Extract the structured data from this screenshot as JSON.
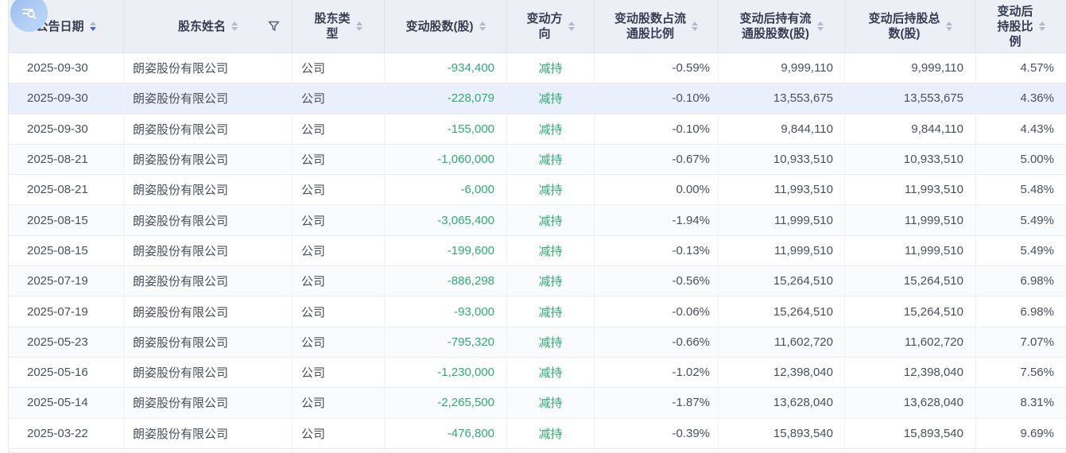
{
  "colors": {
    "positive_green": "#2faa73",
    "header_bg": "#edeff7",
    "highlight_row_bg": "#e9effb",
    "sort_active_blue": "#3e6bd5"
  },
  "fab": {
    "icon": "search-list-icon"
  },
  "table": {
    "columns": [
      {
        "key": "announce_date",
        "label": "公告日期",
        "align": "left",
        "sortable": true,
        "sort_direction": "desc",
        "filter": false,
        "green": false
      },
      {
        "key": "shareholder_name",
        "label": "股东姓名",
        "align": "left",
        "sortable": true,
        "sort_direction": null,
        "filter": true,
        "green": false
      },
      {
        "key": "shareholder_type",
        "label": "股东类\n型",
        "align": "left",
        "sortable": true,
        "sort_direction": null,
        "filter": false,
        "green": false
      },
      {
        "key": "change_shares",
        "label": "变动股数(股)",
        "align": "right",
        "sortable": true,
        "sort_direction": null,
        "filter": false,
        "green": true
      },
      {
        "key": "change_direction",
        "label": "变动方\n向",
        "align": "center",
        "sortable": true,
        "sort_direction": null,
        "filter": false,
        "green": true
      },
      {
        "key": "change_pct_of_float",
        "label": "变动股数占流\n通股比例",
        "align": "right",
        "sortable": true,
        "sort_direction": null,
        "filter": false,
        "green": false
      },
      {
        "key": "float_shares_after",
        "label": "变动后持有流\n通股股数(股)",
        "align": "right",
        "sortable": true,
        "sort_direction": null,
        "filter": false,
        "green": false
      },
      {
        "key": "total_shares_after",
        "label": "变动后持股总\n数(股)",
        "align": "right",
        "sortable": true,
        "sort_direction": null,
        "filter": false,
        "green": false
      },
      {
        "key": "holding_pct_after",
        "label": "变动后\n持股比\n例",
        "align": "right",
        "sortable": true,
        "sort_direction": null,
        "filter": false,
        "green": false
      }
    ],
    "highlighted_row_index": 1,
    "rows": [
      {
        "announce_date": "2025-09-30",
        "shareholder_name": "朗姿股份有限公司",
        "shareholder_type": "公司",
        "change_shares": "-934,400",
        "change_direction": "减持",
        "change_pct_of_float": "-0.59%",
        "float_shares_after": "9,999,110",
        "total_shares_after": "9,999,110",
        "holding_pct_after": "4.57%"
      },
      {
        "announce_date": "2025-09-30",
        "shareholder_name": "朗姿股份有限公司",
        "shareholder_type": "公司",
        "change_shares": "-228,079",
        "change_direction": "减持",
        "change_pct_of_float": "-0.10%",
        "float_shares_after": "13,553,675",
        "total_shares_after": "13,553,675",
        "holding_pct_after": "4.36%"
      },
      {
        "announce_date": "2025-09-30",
        "shareholder_name": "朗姿股份有限公司",
        "shareholder_type": "公司",
        "change_shares": "-155,000",
        "change_direction": "减持",
        "change_pct_of_float": "-0.10%",
        "float_shares_after": "9,844,110",
        "total_shares_after": "9,844,110",
        "holding_pct_after": "4.43%"
      },
      {
        "announce_date": "2025-08-21",
        "shareholder_name": "朗姿股份有限公司",
        "shareholder_type": "公司",
        "change_shares": "-1,060,000",
        "change_direction": "减持",
        "change_pct_of_float": "-0.67%",
        "float_shares_after": "10,933,510",
        "total_shares_after": "10,933,510",
        "holding_pct_after": "5.00%"
      },
      {
        "announce_date": "2025-08-21",
        "shareholder_name": "朗姿股份有限公司",
        "shareholder_type": "公司",
        "change_shares": "-6,000",
        "change_direction": "减持",
        "change_pct_of_float": "0.00%",
        "float_shares_after": "11,993,510",
        "total_shares_after": "11,993,510",
        "holding_pct_after": "5.48%"
      },
      {
        "announce_date": "2025-08-15",
        "shareholder_name": "朗姿股份有限公司",
        "shareholder_type": "公司",
        "change_shares": "-3,065,400",
        "change_direction": "减持",
        "change_pct_of_float": "-1.94%",
        "float_shares_after": "11,999,510",
        "total_shares_after": "11,999,510",
        "holding_pct_after": "5.49%"
      },
      {
        "announce_date": "2025-08-15",
        "shareholder_name": "朗姿股份有限公司",
        "shareholder_type": "公司",
        "change_shares": "-199,600",
        "change_direction": "减持",
        "change_pct_of_float": "-0.13%",
        "float_shares_after": "11,999,510",
        "total_shares_after": "11,999,510",
        "holding_pct_after": "5.49%"
      },
      {
        "announce_date": "2025-07-19",
        "shareholder_name": "朗姿股份有限公司",
        "shareholder_type": "公司",
        "change_shares": "-886,298",
        "change_direction": "减持",
        "change_pct_of_float": "-0.56%",
        "float_shares_after": "15,264,510",
        "total_shares_after": "15,264,510",
        "holding_pct_after": "6.98%"
      },
      {
        "announce_date": "2025-07-19",
        "shareholder_name": "朗姿股份有限公司",
        "shareholder_type": "公司",
        "change_shares": "-93,000",
        "change_direction": "减持",
        "change_pct_of_float": "-0.06%",
        "float_shares_after": "15,264,510",
        "total_shares_after": "15,264,510",
        "holding_pct_after": "6.98%"
      },
      {
        "announce_date": "2025-05-23",
        "shareholder_name": "朗姿股份有限公司",
        "shareholder_type": "公司",
        "change_shares": "-795,320",
        "change_direction": "减持",
        "change_pct_of_float": "-0.66%",
        "float_shares_after": "11,602,720",
        "total_shares_after": "11,602,720",
        "holding_pct_after": "7.07%"
      },
      {
        "announce_date": "2025-05-16",
        "shareholder_name": "朗姿股份有限公司",
        "shareholder_type": "公司",
        "change_shares": "-1,230,000",
        "change_direction": "减持",
        "change_pct_of_float": "-1.02%",
        "float_shares_after": "12,398,040",
        "total_shares_after": "12,398,040",
        "holding_pct_after": "7.56%"
      },
      {
        "announce_date": "2025-05-14",
        "shareholder_name": "朗姿股份有限公司",
        "shareholder_type": "公司",
        "change_shares": "-2,265,500",
        "change_direction": "减持",
        "change_pct_of_float": "-1.87%",
        "float_shares_after": "13,628,040",
        "total_shares_after": "13,628,040",
        "holding_pct_after": "8.31%"
      },
      {
        "announce_date": "2025-03-22",
        "shareholder_name": "朗姿股份有限公司",
        "shareholder_type": "公司",
        "change_shares": "-476,800",
        "change_direction": "减持",
        "change_pct_of_float": "-0.39%",
        "float_shares_after": "15,893,540",
        "total_shares_after": "15,893,540",
        "holding_pct_after": "9.69%"
      }
    ]
  }
}
